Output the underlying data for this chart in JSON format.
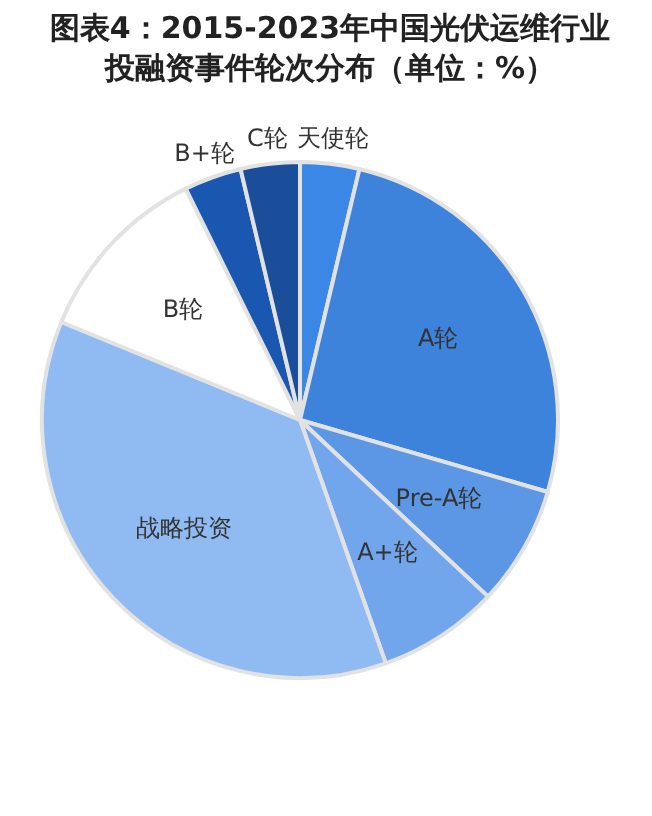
{
  "chart_data": {
    "type": "pie",
    "title": "图表4：2015-2023年中国光伏运维行业投融资事件轮次分布（单位：%）",
    "categories": [
      "天使轮",
      "A轮",
      "Pre-A轮",
      "A+轮",
      "战略投资",
      "B轮",
      "B+轮",
      "C轮"
    ],
    "values": [
      3.7,
      25.8,
      7.5,
      7.6,
      36.6,
      11.5,
      3.6,
      3.7
    ],
    "colors": [
      "#3b87e6",
      "#3d83dc",
      "#5b97e4",
      "#72a6ec",
      "#90baf2",
      "#ffffff",
      "#1a57b0",
      "#1b4e9a"
    ],
    "legend": false
  }
}
